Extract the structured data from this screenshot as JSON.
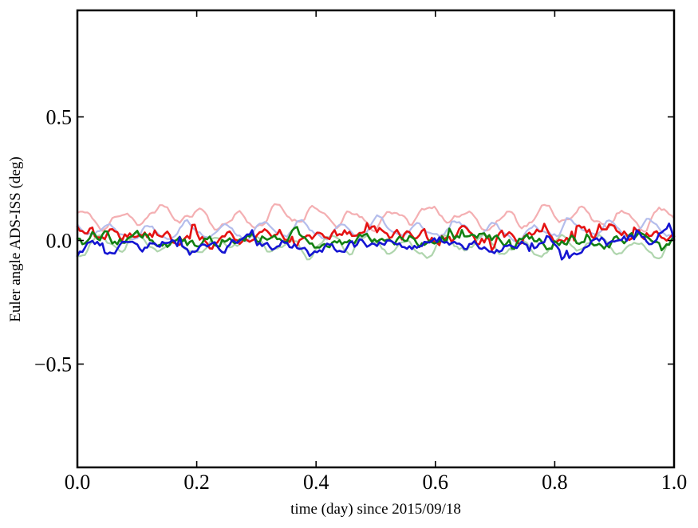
{
  "figure": {
    "background": "#ffffff",
    "frame_color": "#000000",
    "tick_direction": "in"
  },
  "chart_data": {
    "type": "line",
    "title": "",
    "xlabel": "time (day) since 2015/09/18",
    "ylabel": "Euler angle ADS-ISS (deg)",
    "xlim": [
      0.0,
      1.0
    ],
    "ylim": [
      -0.918,
      0.931
    ],
    "grid": false,
    "legend": null,
    "xticks": {
      "values": [
        0.0,
        0.2,
        0.4,
        0.6,
        0.8,
        1.0
      ],
      "labels": [
        "0.0",
        "0.2",
        "0.4",
        "0.6",
        "0.8",
        "1.0"
      ]
    },
    "yticks": {
      "values": [
        0.5,
        0.0,
        -0.5
      ],
      "labels": [
        "0.5",
        "0.0",
        "−0.5"
      ]
    },
    "x_points_per_day": 240,
    "series": [
      {
        "name": "pale-red",
        "color": "#F4AFB2",
        "line_width": 2.2,
        "mean": 0.094,
        "approx_range": [
          0.03,
          0.17
        ],
        "osc": [
          [
            0.033,
            15.5,
            0.08
          ],
          [
            0.016,
            4.6,
            0.55
          ],
          [
            0.007,
            33.0,
            0.3
          ]
        ],
        "noise": 0.009,
        "spike": 0,
        "seed": 11
      },
      {
        "name": "pale-blue",
        "color": "#B4BDEC",
        "line_width": 2.2,
        "mean": 0.043,
        "approx_range": [
          -0.01,
          0.1
        ],
        "osc": [
          [
            0.03,
            15.5,
            0.4
          ],
          [
            0.011,
            6.2,
            0.15
          ],
          [
            0.006,
            31.0,
            0.7
          ]
        ],
        "noise": 0.009,
        "spike": 0,
        "seed": 22
      },
      {
        "name": "pale-green",
        "color": "#AFD5AD",
        "line_width": 2.2,
        "mean": -0.021,
        "approx_range": [
          -0.09,
          0.06
        ],
        "osc": [
          [
            0.033,
            15.5,
            0.7
          ],
          [
            0.013,
            5.2,
            0.82
          ],
          [
            0.006,
            29.0,
            0.5
          ]
        ],
        "noise": 0.009,
        "spike": 0,
        "seed": 33
      },
      {
        "name": "red",
        "color": "#E51212",
        "line_width": 2.6,
        "mean": 0.016,
        "approx_range": [
          -0.04,
          0.09
        ],
        "osc": [
          [
            0.013,
            15.5,
            0.22
          ],
          [
            0.012,
            2.3,
            0.3
          ],
          [
            0.006,
            47.0,
            0.1
          ]
        ],
        "noise": 0.019,
        "spike": 0.028,
        "seed": 44
      },
      {
        "name": "green",
        "color": "#128012",
        "line_width": 2.6,
        "mean": 0.002,
        "approx_range": [
          -0.05,
          0.08
        ],
        "osc": [
          [
            0.01,
            15.5,
            0.58
          ],
          [
            0.009,
            3.1,
            0.15
          ],
          [
            0.006,
            41.0,
            0.33
          ]
        ],
        "noise": 0.016,
        "spike": 0.026,
        "seed": 55
      },
      {
        "name": "blue",
        "color": "#1414D2",
        "line_width": 2.6,
        "mean": -0.013,
        "approx_range": [
          -0.06,
          0.04
        ],
        "osc": [
          [
            0.01,
            15.5,
            0.92
          ],
          [
            0.008,
            2.8,
            0.7
          ],
          [
            0.005,
            37.0,
            0.6
          ]
        ],
        "noise": 0.015,
        "spike": 0.024,
        "seed": 66
      }
    ]
  }
}
